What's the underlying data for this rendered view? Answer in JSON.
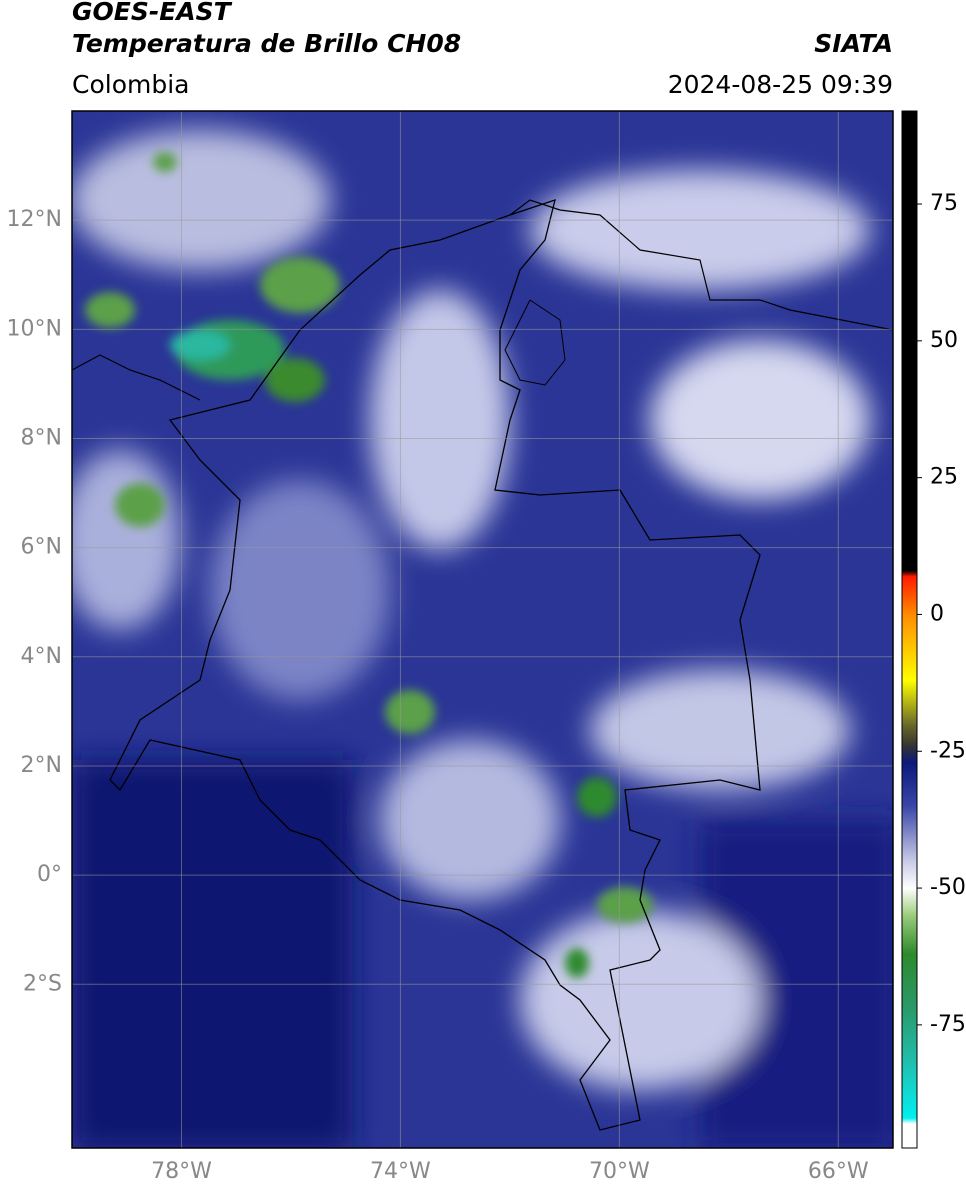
{
  "header": {
    "title": "GOES-EAST",
    "subtitle": "Temperatura de Brillo CH08",
    "source": "SIATA",
    "region": "Colombia",
    "datetime": "2024-08-25 09:39"
  },
  "map": {
    "xlim": [
      -80,
      -65
    ],
    "ylim": [
      -5,
      14
    ],
    "xticks": [
      {
        "value": -78,
        "label": "78°W"
      },
      {
        "value": -74,
        "label": "74°W"
      },
      {
        "value": -70,
        "label": "70°W"
      },
      {
        "value": -66,
        "label": "66°W"
      }
    ],
    "yticks": [
      {
        "value": 12,
        "label": "12°N"
      },
      {
        "value": 10,
        "label": "10°N"
      },
      {
        "value": 8,
        "label": "8°N"
      },
      {
        "value": 6,
        "label": "6°N"
      },
      {
        "value": 4,
        "label": "4°N"
      },
      {
        "value": 2,
        "label": "2°N"
      },
      {
        "value": 0,
        "label": "0°"
      },
      {
        "value": -2,
        "label": "2°S"
      }
    ],
    "grid": true
  },
  "colorbar": {
    "lim": [
      -97.5,
      92
    ],
    "ticks": [
      75,
      50,
      25,
      0,
      -25,
      -50,
      -75
    ],
    "stops": [
      {
        "value": 92,
        "color": "#000000"
      },
      {
        "value": 8,
        "color": "#000000"
      },
      {
        "value": 7,
        "color": "#ff1a00"
      },
      {
        "value": 0,
        "color": "#ff8c00"
      },
      {
        "value": -12,
        "color": "#ffff00"
      },
      {
        "value": -20,
        "color": "#6b6b2a"
      },
      {
        "value": -24,
        "color": "#333333"
      },
      {
        "value": -27,
        "color": "#0a1a7a"
      },
      {
        "value": -35,
        "color": "#3a46a8"
      },
      {
        "value": -45,
        "color": "#c8cbe6"
      },
      {
        "value": -50,
        "color": "#ffffff"
      },
      {
        "value": -55,
        "color": "#9acc7a"
      },
      {
        "value": -62,
        "color": "#2d8a2d"
      },
      {
        "value": -72,
        "color": "#2a9a6a"
      },
      {
        "value": -82,
        "color": "#20c0b0"
      },
      {
        "value": -92,
        "color": "#00f0f0"
      },
      {
        "value": -93,
        "color": "#ffffff"
      },
      {
        "value": -97.5,
        "color": "#ffffff"
      }
    ]
  }
}
